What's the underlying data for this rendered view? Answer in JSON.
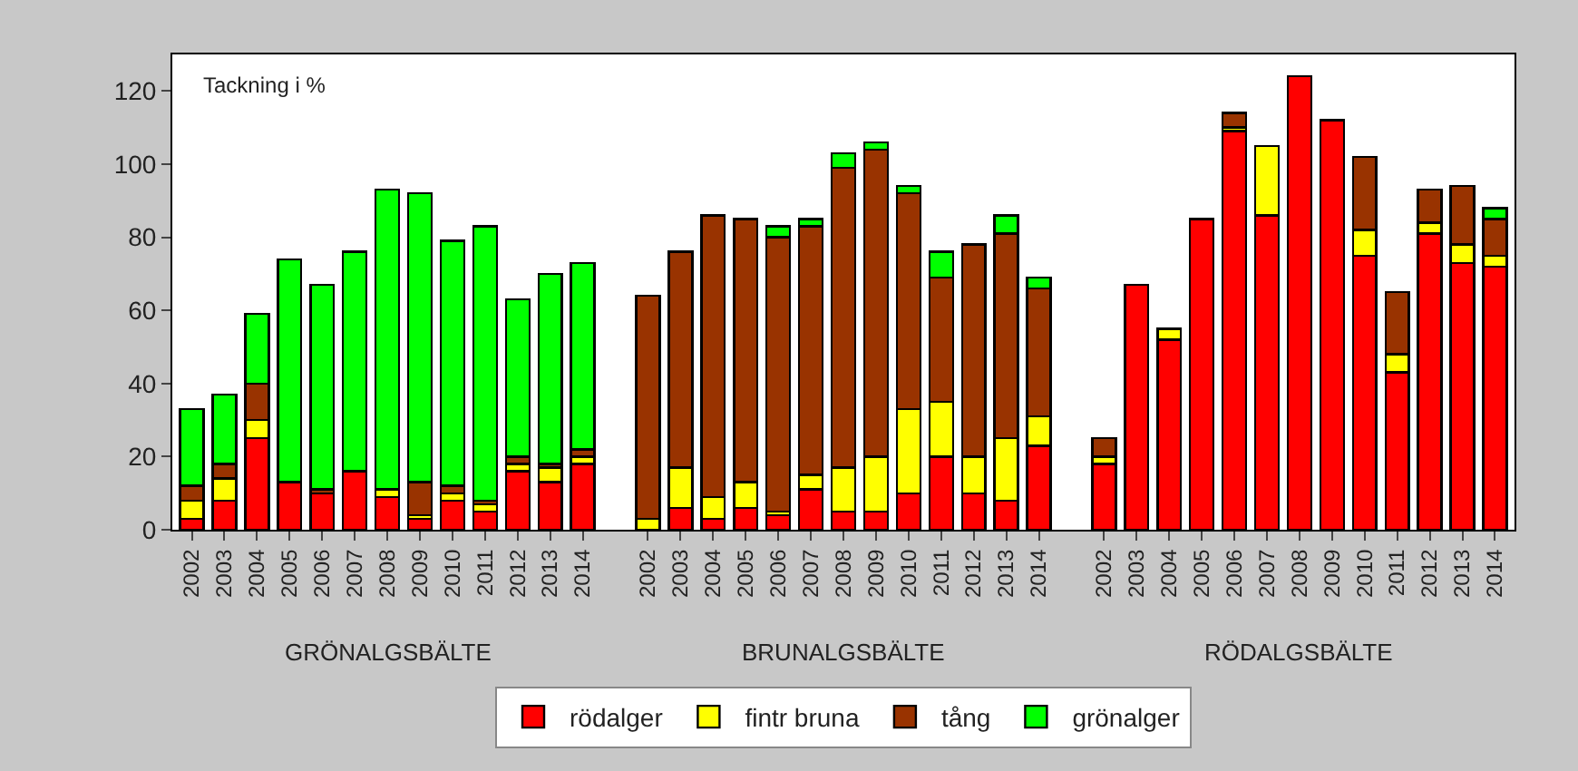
{
  "chart_data": {
    "type": "bar",
    "stacked": true,
    "ylabel": "Tackning i %",
    "categories": [
      "2002",
      "2003",
      "2004",
      "2005",
      "2006",
      "2007",
      "2008",
      "2009",
      "2010",
      "2011",
      "2012",
      "2013",
      "2014",
      null,
      "2002",
      "2003",
      "2004",
      "2005",
      "2006",
      "2007",
      "2008",
      "2009",
      "2010",
      "2011",
      "2012",
      "2013",
      "2014",
      null,
      "2002",
      "2003",
      "2004",
      "2005",
      "2006",
      "2007",
      "2008",
      "2009",
      "2010",
      "2011",
      "2012",
      "2013",
      "2014"
    ],
    "series": [
      {
        "name": "rödalger",
        "color": "#ff0000",
        "values": [
          3,
          8,
          25,
          13,
          10,
          16,
          9,
          3,
          8,
          5,
          16,
          13,
          18,
          null,
          0,
          6,
          3,
          6,
          4,
          11,
          5,
          5,
          10,
          20,
          10,
          8,
          23,
          null,
          18,
          67,
          52,
          85,
          109,
          86,
          124,
          112,
          75,
          43,
          81,
          73,
          72
        ]
      },
      {
        "name": "fintr bruna",
        "color": "#ffff00",
        "values": [
          5,
          6,
          5,
          0,
          0,
          0,
          2,
          1,
          2,
          2,
          2,
          4,
          2,
          null,
          3,
          11,
          6,
          7,
          1,
          4,
          12,
          15,
          23,
          15,
          10,
          17,
          8,
          null,
          2,
          0,
          3,
          0,
          1,
          19,
          0,
          0,
          7,
          5,
          3,
          5,
          3
        ]
      },
      {
        "name": "tång",
        "color": "#993300",
        "values": [
          4,
          4,
          10,
          0,
          1,
          0,
          0,
          9,
          2,
          1,
          2,
          1,
          2,
          null,
          61,
          59,
          77,
          72,
          75,
          68,
          82,
          84,
          59,
          34,
          58,
          56,
          35,
          null,
          5,
          0,
          0,
          0,
          4,
          0,
          0,
          0,
          20,
          17,
          9,
          16,
          10
        ]
      },
      {
        "name": "grönalger",
        "color": "#00ff00",
        "values": [
          21,
          19,
          19,
          61,
          56,
          60,
          82,
          79,
          67,
          75,
          43,
          52,
          51,
          null,
          0,
          0,
          0,
          0,
          3,
          2,
          4,
          2,
          2,
          7,
          0,
          5,
          3,
          null,
          0,
          0,
          0,
          0,
          0,
          0,
          0,
          0,
          0,
          0,
          0,
          0,
          3
        ]
      }
    ],
    "annotations": [
      "GRÖNALGSBÄLTE",
      "BRUNALGSBÄLTE",
      "RÖDALGSBÄLTE"
    ],
    "ylim": [
      0,
      130
    ],
    "yticks": [
      0,
      20,
      40,
      60,
      80,
      100,
      120
    ],
    "legend": "bottom"
  }
}
